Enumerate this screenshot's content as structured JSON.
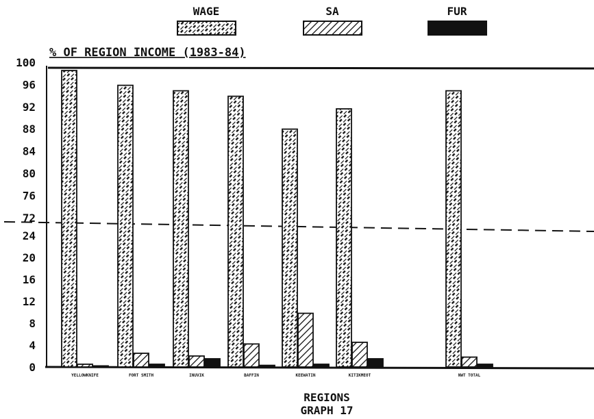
{
  "chart_data": {
    "type": "bar",
    "title": "% OF REGION INCOME (1983-84)",
    "xlabel": "REGIONS",
    "caption": "GRAPH 17",
    "axis_break": {
      "lower_top": 24,
      "upper_bottom": 72
    },
    "yticks": [
      "0",
      "4",
      "8",
      "12",
      "16",
      "20",
      "24",
      "72",
      "76",
      "80",
      "84",
      "88",
      "92",
      "96",
      "100"
    ],
    "legend_position": "top",
    "categories": [
      "YELLOWKNIFE",
      "FORT SMITH",
      "INUVIK",
      "BAFFIN",
      "KEEWATIN",
      "KITIKMEOT",
      "NWT TOTAL"
    ],
    "series": [
      {
        "name": "WAGE",
        "values": [
          99.5,
          96.8,
          95.8,
          94.8,
          88.8,
          92.5,
          95.8
        ],
        "pattern": "dashed-hatch"
      },
      {
        "name": "SA",
        "values": [
          0.5,
          2.5,
          2.0,
          4.2,
          9.8,
          4.5,
          1.8
        ],
        "pattern": "hatch"
      },
      {
        "name": "FUR",
        "values": [
          0.2,
          0.5,
          1.5,
          0.3,
          0.5,
          1.5,
          0.5
        ],
        "pattern": "solid",
        "color": "#111111"
      }
    ]
  }
}
